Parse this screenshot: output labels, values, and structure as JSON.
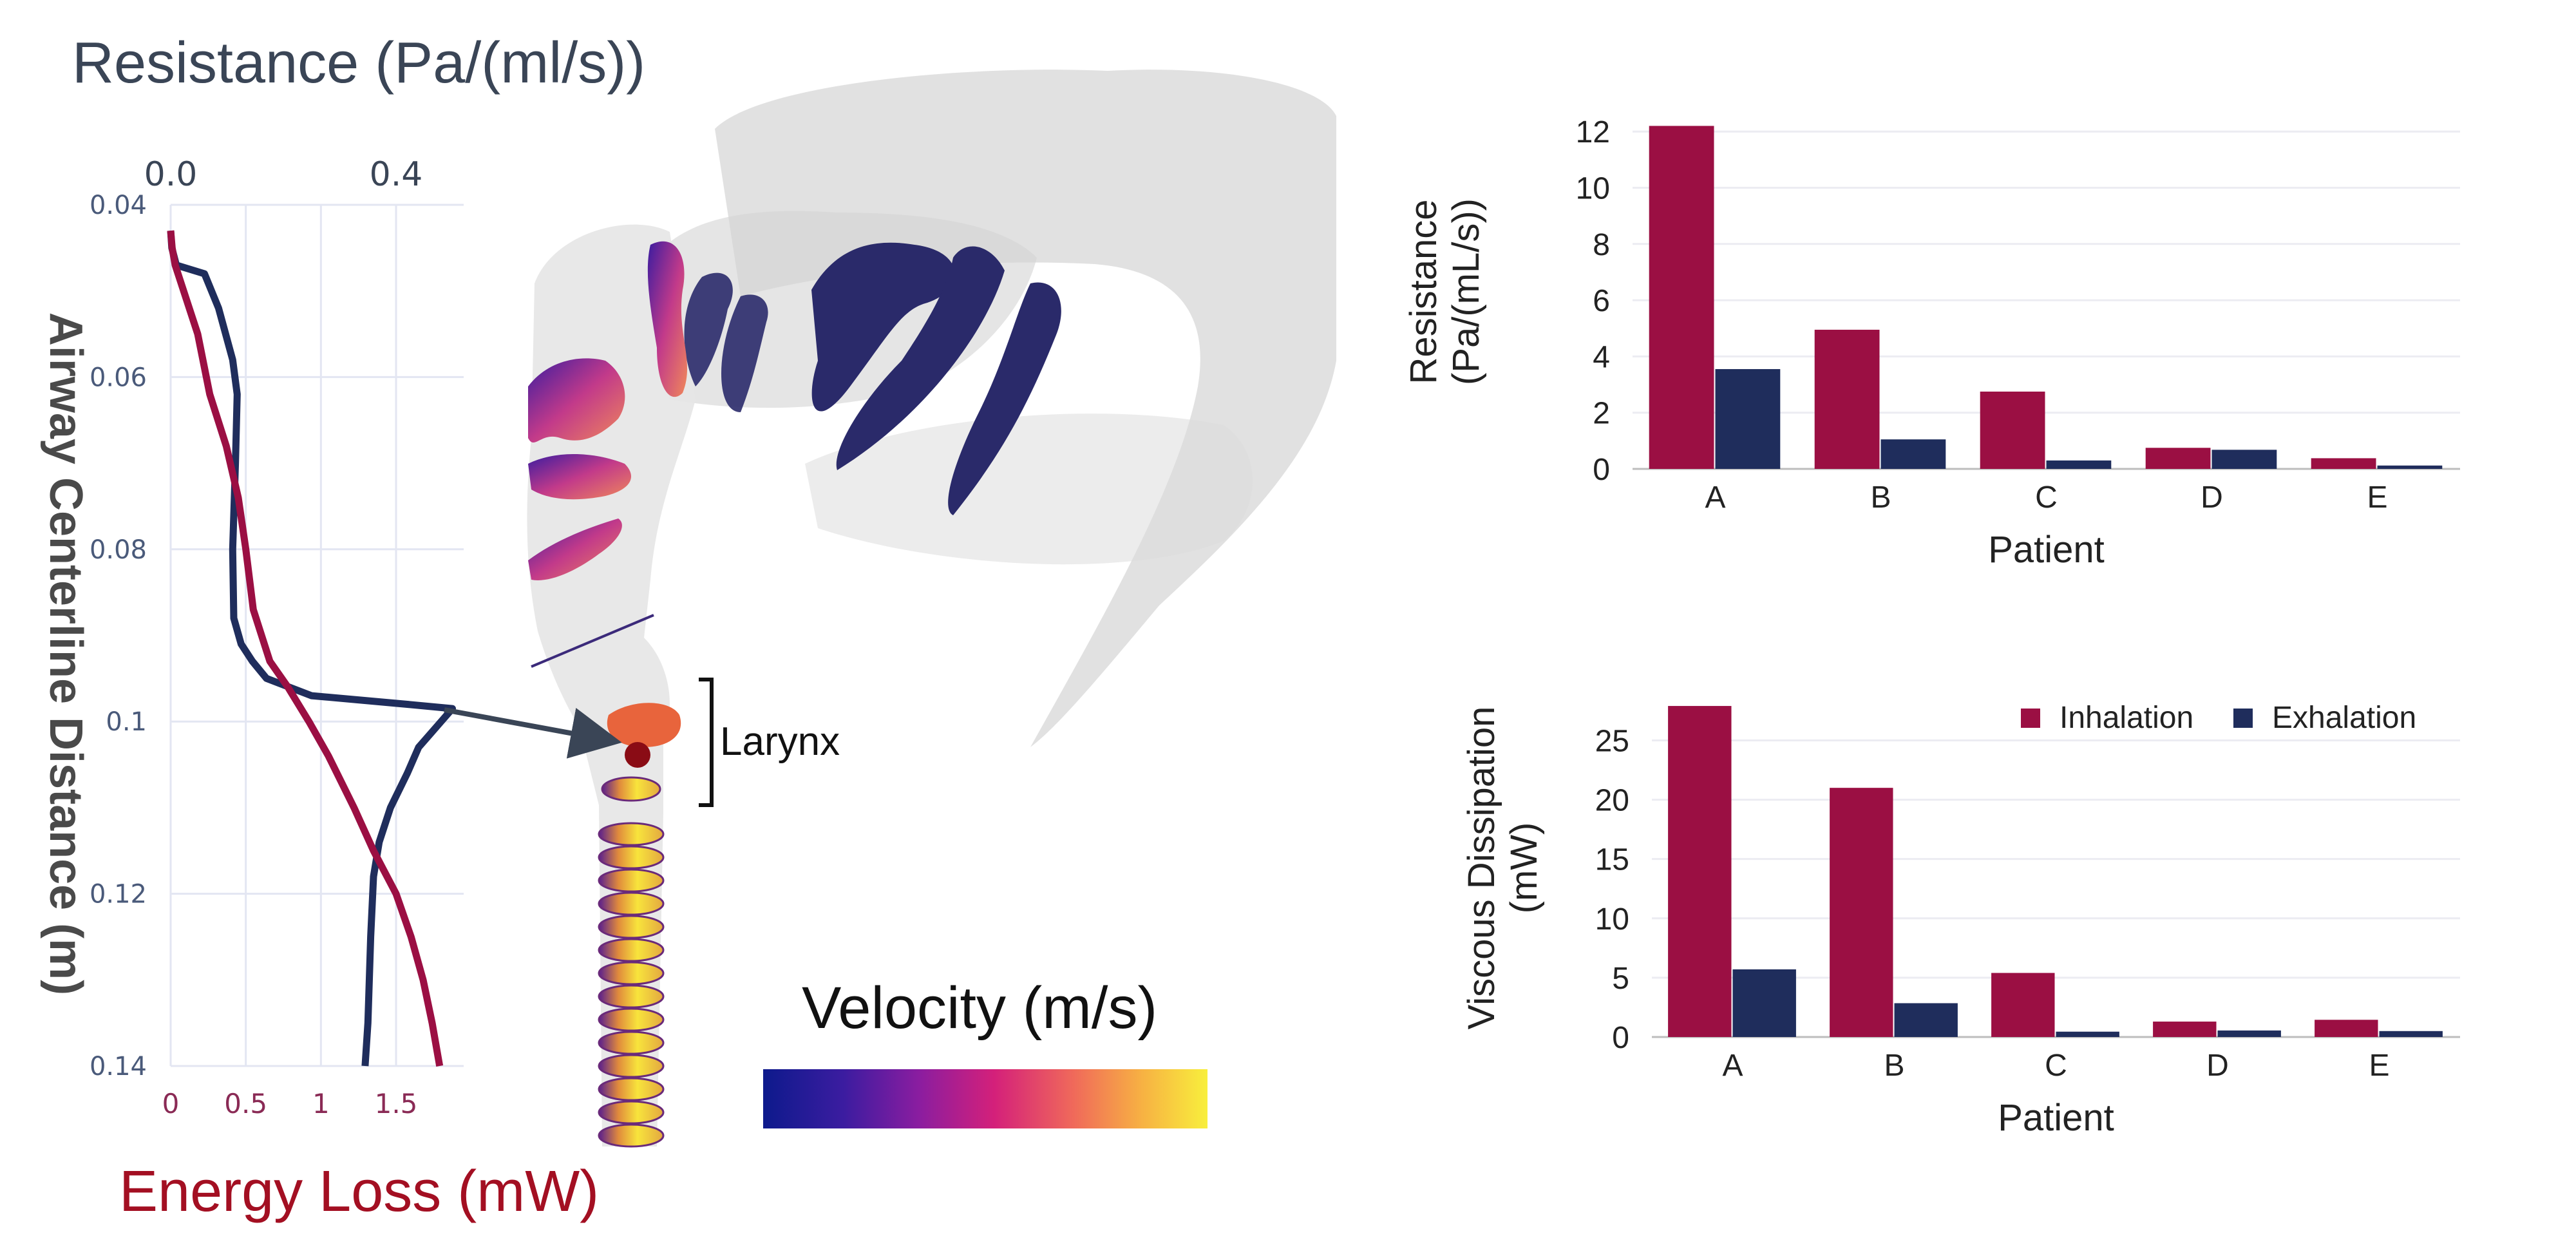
{
  "left_panel": {
    "top_axis_title": "Resistance (Pa/(ml/s))",
    "top_ticks": [
      "0.0",
      "0.4"
    ],
    "y_axis_title": "Airway Centerline Distance (m)",
    "y_ticks": [
      "0.04",
      "0.06",
      "0.08",
      "0.1",
      "0.12",
      "0.14"
    ],
    "bottom_axis_title": "Energy Loss (mW)",
    "bottom_ticks": [
      "0",
      "0.5",
      "1",
      "1.5"
    ],
    "annotation": "Larynx",
    "colorbar_title": "Velocity (m/s)",
    "colors": {
      "resistance": "#1f2d5c",
      "energy": "#9b0f43",
      "axis_title": "#3a4556",
      "energy_title": "#a30f22"
    }
  },
  "chart_data": [
    {
      "type": "line",
      "xlabel": "Energy Loss (mW)",
      "x2label": "Resistance (Pa/(ml/s))",
      "ylabel": "Airway Centerline Distance (m)",
      "ylim": [
        0.04,
        0.14
      ],
      "y_inverted": true,
      "xlim": [
        0,
        1.95
      ],
      "x2lim": [
        0,
        0.52
      ],
      "series": [
        {
          "axis": "top",
          "color": "#1f2d5c",
          "points": [
            [
              0.0,
              0.043
            ],
            [
              0.002,
              0.045
            ],
            [
              0.01,
              0.047
            ],
            [
              0.06,
              0.048
            ],
            [
              0.085,
              0.052
            ],
            [
              0.11,
              0.058
            ],
            [
              0.118,
              0.062
            ],
            [
              0.115,
              0.07
            ],
            [
              0.11,
              0.08
            ],
            [
              0.112,
              0.088
            ],
            [
              0.125,
              0.091
            ],
            [
              0.145,
              0.093
            ],
            [
              0.17,
              0.095
            ],
            [
              0.25,
              0.097
            ],
            [
              0.42,
              0.098
            ],
            [
              0.5,
              0.0985
            ],
            [
              0.48,
              0.1
            ],
            [
              0.44,
              0.103
            ],
            [
              0.42,
              0.106
            ],
            [
              0.39,
              0.11
            ],
            [
              0.37,
              0.114
            ],
            [
              0.36,
              0.118
            ],
            [
              0.355,
              0.125
            ],
            [
              0.35,
              0.135
            ],
            [
              0.345,
              0.14
            ]
          ]
        },
        {
          "axis": "bottom",
          "color": "#9b0f43",
          "points": [
            [
              0.0,
              0.043
            ],
            [
              0.01,
              0.045
            ],
            [
              0.03,
              0.047
            ],
            [
              0.18,
              0.055
            ],
            [
              0.26,
              0.062
            ],
            [
              0.37,
              0.068
            ],
            [
              0.45,
              0.074
            ],
            [
              0.5,
              0.08
            ],
            [
              0.55,
              0.087
            ],
            [
              0.66,
              0.093
            ],
            [
              0.78,
              0.096
            ],
            [
              0.92,
              0.1
            ],
            [
              1.05,
              0.104
            ],
            [
              1.22,
              0.11
            ],
            [
              1.35,
              0.115
            ],
            [
              1.5,
              0.12
            ],
            [
              1.6,
              0.125
            ],
            [
              1.68,
              0.13
            ],
            [
              1.74,
              0.135
            ],
            [
              1.79,
              0.14
            ]
          ]
        }
      ]
    },
    {
      "type": "bar",
      "categories": [
        "A",
        "B",
        "C",
        "D",
        "E"
      ],
      "series": [
        {
          "name": "Inhalation",
          "values": [
            12.2,
            4.95,
            2.75,
            0.75,
            0.38
          ]
        },
        {
          "name": "Exhalation",
          "values": [
            3.55,
            1.05,
            0.3,
            0.68,
            0.12
          ]
        }
      ],
      "xlabel": "Patient",
      "ylabel": [
        "Resistance",
        "(Pa/(mL/s))"
      ],
      "ylim": [
        0,
        12.6
      ],
      "yticks": [
        0,
        2,
        4,
        6,
        8,
        10,
        12
      ],
      "grid": true,
      "colors": [
        "#9b0f43",
        "#1f2d5c"
      ]
    },
    {
      "type": "bar",
      "categories": [
        "A",
        "B",
        "C",
        "D",
        "E"
      ],
      "series": [
        {
          "name": "Inhalation",
          "values": [
            27.9,
            21.0,
            5.4,
            1.3,
            1.45
          ]
        },
        {
          "name": "Exhalation",
          "values": [
            5.7,
            2.85,
            0.45,
            0.55,
            0.5
          ]
        }
      ],
      "xlabel": "Patient",
      "ylabel": [
        "Viscous Dissipation",
        "(mW)"
      ],
      "ylim": [
        0,
        28.5
      ],
      "yticks": [
        0,
        5,
        10,
        15,
        20,
        25
      ],
      "grid": true,
      "legend": "top-right",
      "colors": [
        "#9b0f43",
        "#1f2d5c"
      ]
    }
  ]
}
